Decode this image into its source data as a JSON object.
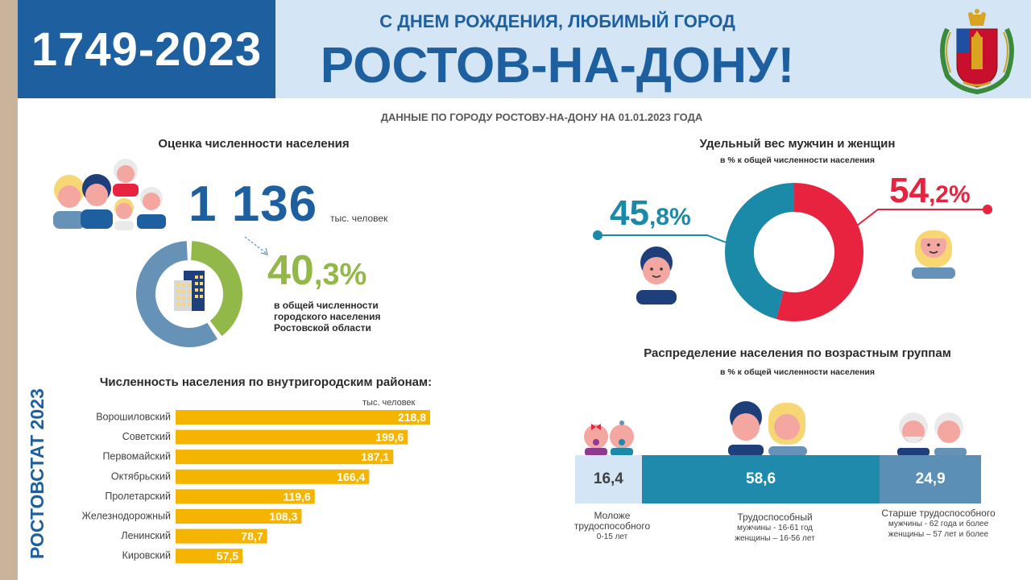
{
  "header": {
    "years": "1749-2023",
    "subtitle": "С ДНЕМ РОЖДЕНИЯ, ЛЮБИМЫЙ ГОРОД",
    "city": "РОСТОВ-НА-ДОНУ!"
  },
  "data_date": "ДАННЫЕ ПО ГОРОДУ РОСТОВУ-НА-ДОНУ НА 01.01.2023 ГОДА",
  "population": {
    "title": "Оценка численности населения",
    "value": "1 136",
    "unit": "тыс. человек",
    "share_int": "40",
    "share_dec": ",3%",
    "share_note": "в общей численности городского населения Ростовской области"
  },
  "districts": {
    "title": "Численность населения по внутригородским районам:",
    "unit": "тыс. человек"
  },
  "gender": {
    "title": "Удельный вес мужчин и женщин",
    "subtitle": "в % к общей численности населения",
    "men_int": "45",
    "men_dec": ",8%",
    "women_int": "54",
    "women_dec": ",2%"
  },
  "age": {
    "title": "Распределение населения по возрастным группам",
    "subtitle": "в % к общей численности населения",
    "segments": [
      {
        "value": "16,4",
        "label": "Моложе трудоспособного",
        "note": "0-15 лет",
        "note2": ""
      },
      {
        "value": "58,6",
        "label": "Трудоспособный",
        "note": "мужчины - 16-61 год",
        "note2": "женщины – 16-56 лет"
      },
      {
        "value": "24,9",
        "label": "Старше трудоспособного",
        "note": "мужчины - 62 года и более",
        "note2": "женщины – 57 лет и более"
      }
    ]
  },
  "source": "РОСТОВСТАТ 2023",
  "colors": {
    "blue": "#1e5fa0",
    "teal": "#1a8aa8",
    "red": "#e8233f",
    "green": "#92b84a",
    "bar": "#f5b400",
    "donut_grey": "#6592b6",
    "age_light": "#d4e6f6",
    "age_mid": "#1f8aab",
    "age_dark": "#5b8fb6"
  },
  "chart_data": [
    {
      "type": "bar",
      "orientation": "horizontal",
      "title": "Численность населения по внутригородским районам:",
      "unit": "тыс. человек",
      "categories": [
        "Ворошиловский",
        "Советский",
        "Первомайский",
        "Октябрьский",
        "Пролетарский",
        "Железнодорожный",
        "Ленинский",
        "Кировский"
      ],
      "values": [
        218.8,
        199.6,
        187.1,
        166.4,
        119.6,
        108.3,
        78.7,
        57.5
      ],
      "value_labels": [
        "218,8",
        "199,6",
        "187,1",
        "166,4",
        "119,6",
        "108,3",
        "78,7",
        "57,5"
      ]
    },
    {
      "type": "pie",
      "variant": "donut",
      "title": "Удельный вес мужчин и женщин",
      "subtitle": "в % к общей численности населения",
      "values": [
        45.8,
        54.2
      ]
    },
    {
      "type": "pie",
      "variant": "donut",
      "values": [
        40.3,
        59.7
      ]
    },
    {
      "type": "bar",
      "orientation": "stacked-horizontal",
      "title": "Распределение населения по возрастным группам",
      "categories": [
        "Моложе трудоспособного",
        "Трудоспособный",
        "Старше трудоспособного"
      ],
      "values": [
        16.4,
        58.6,
        24.9
      ]
    }
  ]
}
